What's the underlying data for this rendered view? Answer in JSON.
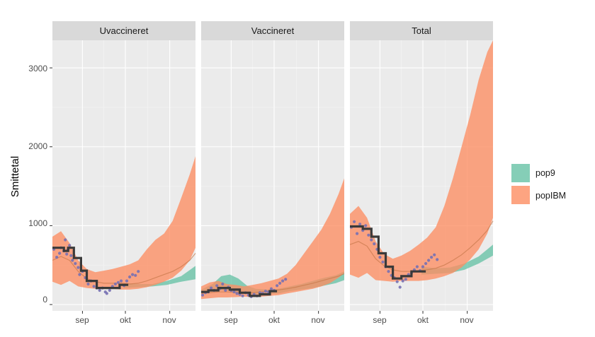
{
  "chart_data": {
    "type": "area",
    "ylabel": "Smittetal",
    "xlabel": "",
    "ylim": [
      -80,
      3350
    ],
    "xlim": [
      0,
      100
    ],
    "y_ticks": [
      0,
      1000,
      2000,
      3000
    ],
    "y_tick_labels": [
      "0",
      "1000",
      "2000",
      "3000"
    ],
    "x_ticks": [
      {
        "label": "sep",
        "x": 21
      },
      {
        "label": "okt",
        "x": 51
      },
      {
        "label": "nov",
        "x": 82
      }
    ],
    "legend": {
      "position": "right",
      "entries": [
        {
          "name": "pop9",
          "color": "#66C2A5"
        },
        {
          "name": "popIBM",
          "color": "#FC8D62"
        }
      ]
    },
    "colors": {
      "pop9": "#66C2A5",
      "popIBM": "#FC8D62",
      "observed_points": "#7570B3",
      "observed_line": "#3a3a3a",
      "panel_bg": "#EBEBEB",
      "strip_bg": "#D9D9D9"
    },
    "panels": [
      {
        "title": "Uvaccineret",
        "popIBM_band": {
          "x": [
            0,
            6,
            12,
            18,
            24,
            30,
            36,
            42,
            48,
            54,
            60,
            66,
            72,
            78,
            84,
            90,
            96,
            100
          ],
          "lower": [
            290,
            250,
            300,
            230,
            210,
            200,
            210,
            200,
            190,
            190,
            200,
            220,
            250,
            290,
            340,
            430,
            560,
            720
          ],
          "upper": [
            860,
            930,
            780,
            560,
            450,
            410,
            430,
            450,
            480,
            510,
            560,
            700,
            820,
            900,
            1060,
            1350,
            1650,
            1880
          ]
        },
        "pop9_band": {
          "x": [
            0,
            40,
            50,
            60,
            70,
            80,
            90,
            100
          ],
          "lower": [
            0,
            0,
            210,
            220,
            230,
            250,
            290,
            320
          ],
          "upper": [
            0,
            0,
            270,
            260,
            260,
            300,
            360,
            490
          ]
        },
        "median": {
          "x": [
            0,
            6,
            12,
            18,
            24,
            30,
            36,
            42,
            48,
            54,
            60,
            66,
            72,
            78,
            84,
            90,
            96,
            100
          ],
          "values": [
            560,
            610,
            560,
            420,
            330,
            290,
            270,
            270,
            270,
            260,
            270,
            300,
            340,
            380,
            420,
            480,
            560,
            650
          ]
        },
        "observed_steps": {
          "x": [
            0,
            8,
            11,
            15,
            20,
            24,
            31,
            39,
            47,
            53
          ],
          "values": [
            720,
            680,
            720,
            590,
            430,
            300,
            210,
            210,
            250,
            250
          ]
        },
        "observed_points": [
          {
            "x": 1,
            "y": 700
          },
          {
            "x": 3,
            "y": 600
          },
          {
            "x": 5,
            "y": 650
          },
          {
            "x": 6,
            "y": 720
          },
          {
            "x": 8,
            "y": 680
          },
          {
            "x": 9,
            "y": 820
          },
          {
            "x": 10,
            "y": 640
          },
          {
            "x": 11,
            "y": 700
          },
          {
            "x": 12,
            "y": 750
          },
          {
            "x": 13,
            "y": 620
          },
          {
            "x": 14,
            "y": 560
          },
          {
            "x": 16,
            "y": 520
          },
          {
            "x": 18,
            "y": 470
          },
          {
            "x": 19,
            "y": 380
          },
          {
            "x": 21,
            "y": 420
          },
          {
            "x": 23,
            "y": 340
          },
          {
            "x": 25,
            "y": 260
          },
          {
            "x": 27,
            "y": 300
          },
          {
            "x": 29,
            "y": 230
          },
          {
            "x": 31,
            "y": 210
          },
          {
            "x": 33,
            "y": 180
          },
          {
            "x": 35,
            "y": 210
          },
          {
            "x": 37,
            "y": 160
          },
          {
            "x": 38,
            "y": 140
          },
          {
            "x": 40,
            "y": 180
          },
          {
            "x": 42,
            "y": 230
          },
          {
            "x": 44,
            "y": 260
          },
          {
            "x": 46,
            "y": 280
          },
          {
            "x": 48,
            "y": 300
          },
          {
            "x": 50,
            "y": 240
          },
          {
            "x": 52,
            "y": 300
          },
          {
            "x": 54,
            "y": 350
          },
          {
            "x": 56,
            "y": 380
          },
          {
            "x": 58,
            "y": 370
          },
          {
            "x": 60,
            "y": 420
          }
        ]
      },
      {
        "title": "Vaccineret",
        "popIBM_band": {
          "x": [
            0,
            6,
            12,
            18,
            24,
            30,
            36,
            42,
            48,
            54,
            60,
            66,
            72,
            78,
            84,
            90,
            96,
            100
          ],
          "lower": [
            70,
            80,
            90,
            90,
            95,
            100,
            95,
            100,
            110,
            120,
            140,
            160,
            180,
            200,
            230,
            270,
            340,
            400
          ],
          "upper": [
            230,
            280,
            300,
            260,
            250,
            230,
            250,
            270,
            300,
            330,
            390,
            500,
            650,
            800,
            950,
            1150,
            1400,
            1600
          ]
        },
        "pop9_band": {
          "x": [
            0,
            8,
            14,
            20,
            26,
            32,
            38,
            46,
            54,
            62,
            70,
            78,
            86,
            94,
            100
          ],
          "lower": [
            150,
            160,
            180,
            170,
            150,
            140,
            130,
            130,
            140,
            170,
            190,
            210,
            240,
            270,
            310
          ],
          "upper": [
            190,
            260,
            360,
            380,
            330,
            240,
            200,
            190,
            200,
            230,
            260,
            300,
            340,
            370,
            420
          ]
        },
        "median": {
          "x": [
            0,
            6,
            12,
            18,
            24,
            30,
            36,
            42,
            48,
            54,
            60,
            66,
            72,
            78,
            84,
            90,
            96,
            100
          ],
          "values": [
            140,
            150,
            160,
            160,
            155,
            150,
            150,
            160,
            170,
            185,
            200,
            220,
            245,
            270,
            300,
            330,
            360,
            390
          ]
        },
        "observed_steps": {
          "x": [
            0,
            5,
            12,
            20,
            27,
            34,
            41,
            48,
            53
          ],
          "values": [
            160,
            180,
            210,
            190,
            150,
            110,
            130,
            170,
            170
          ]
        },
        "observed_points": [
          {
            "x": 1,
            "y": 120
          },
          {
            "x": 3,
            "y": 150
          },
          {
            "x": 5,
            "y": 160
          },
          {
            "x": 7,
            "y": 210
          },
          {
            "x": 9,
            "y": 180
          },
          {
            "x": 11,
            "y": 240
          },
          {
            "x": 13,
            "y": 200
          },
          {
            "x": 15,
            "y": 260
          },
          {
            "x": 17,
            "y": 180
          },
          {
            "x": 19,
            "y": 220
          },
          {
            "x": 21,
            "y": 180
          },
          {
            "x": 23,
            "y": 160
          },
          {
            "x": 25,
            "y": 140
          },
          {
            "x": 27,
            "y": 130
          },
          {
            "x": 29,
            "y": 110
          },
          {
            "x": 31,
            "y": 150
          },
          {
            "x": 33,
            "y": 120
          },
          {
            "x": 35,
            "y": 100
          },
          {
            "x": 37,
            "y": 130
          },
          {
            "x": 39,
            "y": 110
          },
          {
            "x": 41,
            "y": 150
          },
          {
            "x": 43,
            "y": 140
          },
          {
            "x": 45,
            "y": 170
          },
          {
            "x": 47,
            "y": 160
          },
          {
            "x": 49,
            "y": 200
          },
          {
            "x": 51,
            "y": 180
          },
          {
            "x": 53,
            "y": 240
          },
          {
            "x": 55,
            "y": 270
          },
          {
            "x": 57,
            "y": 300
          },
          {
            "x": 59,
            "y": 320
          }
        ]
      },
      {
        "title": "Total",
        "popIBM_band": {
          "x": [
            0,
            6,
            12,
            18,
            24,
            30,
            36,
            42,
            48,
            54,
            60,
            66,
            72,
            78,
            84,
            90,
            96,
            100
          ],
          "lower": [
            380,
            340,
            400,
            310,
            300,
            290,
            300,
            300,
            300,
            310,
            330,
            360,
            400,
            470,
            570,
            700,
            900,
            1100
          ],
          "upper": [
            1150,
            1250,
            1100,
            800,
            640,
            580,
            620,
            680,
            760,
            850,
            980,
            1250,
            1600,
            2000,
            2400,
            2850,
            3200,
            3350
          ]
        },
        "pop9_band": {
          "x": [
            0,
            40,
            50,
            60,
            70,
            80,
            90,
            100
          ],
          "lower": [
            0,
            0,
            380,
            390,
            400,
            440,
            520,
            620
          ],
          "upper": [
            0,
            0,
            480,
            460,
            470,
            520,
            610,
            760
          ]
        },
        "median": {
          "x": [
            0,
            6,
            12,
            18,
            24,
            30,
            36,
            42,
            48,
            54,
            60,
            66,
            72,
            78,
            84,
            90,
            96,
            100
          ],
          "values": [
            760,
            800,
            740,
            580,
            490,
            440,
            420,
            420,
            430,
            440,
            460,
            500,
            560,
            630,
            720,
            820,
            940,
            1060
          ]
        },
        "observed_steps": {
          "x": [
            0,
            9,
            15,
            20,
            25,
            30,
            36,
            43,
            50,
            53
          ],
          "values": [
            990,
            960,
            860,
            650,
            480,
            330,
            360,
            420,
            420,
            420
          ]
        },
        "observed_points": [
          {
            "x": 1,
            "y": 980
          },
          {
            "x": 3,
            "y": 1050
          },
          {
            "x": 5,
            "y": 900
          },
          {
            "x": 7,
            "y": 1020
          },
          {
            "x": 9,
            "y": 940
          },
          {
            "x": 11,
            "y": 1000
          },
          {
            "x": 13,
            "y": 880
          },
          {
            "x": 15,
            "y": 820
          },
          {
            "x": 17,
            "y": 770
          },
          {
            "x": 19,
            "y": 700
          },
          {
            "x": 21,
            "y": 600
          },
          {
            "x": 23,
            "y": 540
          },
          {
            "x": 25,
            "y": 480
          },
          {
            "x": 27,
            "y": 420
          },
          {
            "x": 29,
            "y": 370
          },
          {
            "x": 31,
            "y": 340
          },
          {
            "x": 33,
            "y": 290
          },
          {
            "x": 35,
            "y": 220
          },
          {
            "x": 37,
            "y": 300
          },
          {
            "x": 39,
            "y": 320
          },
          {
            "x": 41,
            "y": 380
          },
          {
            "x": 43,
            "y": 400
          },
          {
            "x": 45,
            "y": 440
          },
          {
            "x": 47,
            "y": 480
          },
          {
            "x": 49,
            "y": 430
          },
          {
            "x": 51,
            "y": 480
          },
          {
            "x": 53,
            "y": 520
          },
          {
            "x": 55,
            "y": 560
          },
          {
            "x": 57,
            "y": 600
          },
          {
            "x": 59,
            "y": 630
          },
          {
            "x": 61,
            "y": 570
          }
        ]
      }
    ]
  }
}
